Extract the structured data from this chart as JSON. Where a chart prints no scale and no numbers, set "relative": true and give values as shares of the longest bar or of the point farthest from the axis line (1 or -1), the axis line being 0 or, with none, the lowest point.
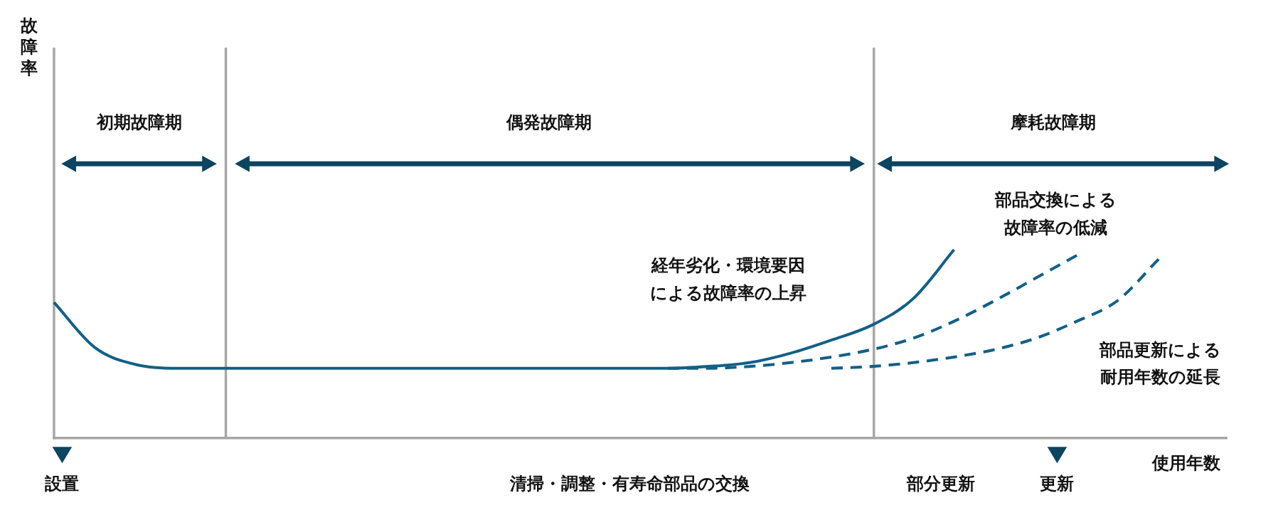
{
  "chart_data": {
    "type": "line",
    "relative": true,
    "xlabel": "使用年数",
    "categories": [
      null,
      null,
      null,
      null,
      null,
      null,
      null,
      null,
      null,
      null,
      null,
      null,
      null,
      null,
      null,
      null,
      null,
      null,
      null,
      null,
      null,
      null,
      null,
      null,
      null,
      null,
      null,
      null,
      null
    ],
    "series": [
      {
        "color": "#135f86",
        "line_style": "solid",
        "values": [
          0.72,
          0.48,
          0.39,
          0.37,
          0.37,
          0.37,
          0.37,
          0.37,
          0.37,
          0.37,
          0.37,
          0.37,
          0.37,
          0.37,
          0.37,
          0.37,
          0.38,
          0.4,
          0.45,
          0.52,
          0.6,
          0.74,
          1.0,
          null,
          null,
          null,
          null,
          null,
          null
        ]
      },
      {
        "color": "#135f86",
        "line_style": "dashed",
        "values": [
          null,
          null,
          null,
          null,
          null,
          null,
          null,
          null,
          null,
          null,
          null,
          null,
          null,
          null,
          null,
          0.37,
          0.37,
          0.38,
          0.4,
          0.43,
          0.47,
          0.53,
          0.62,
          0.73,
          0.85,
          0.97,
          null,
          null,
          null
        ]
      },
      {
        "color": "#135f86",
        "line_style": "dashed",
        "values": [
          null,
          null,
          null,
          null,
          null,
          null,
          null,
          null,
          null,
          null,
          null,
          null,
          null,
          null,
          null,
          null,
          null,
          null,
          null,
          0.37,
          0.38,
          0.4,
          0.43,
          0.47,
          0.53,
          0.62,
          0.73,
          0.95,
          null
        ]
      }
    ],
    "annotations": [
      "初期故障期",
      "偶発故障期",
      "摩耗故障期",
      "経年劣化・環境要因による故障率の上昇",
      "部品交換による故障率の低減",
      "部品更新による耐用年数の延長",
      "設置",
      "清掃・調整・有寿命部品の交換",
      "部分更新",
      "更新",
      "故障率"
    ]
  }
}
